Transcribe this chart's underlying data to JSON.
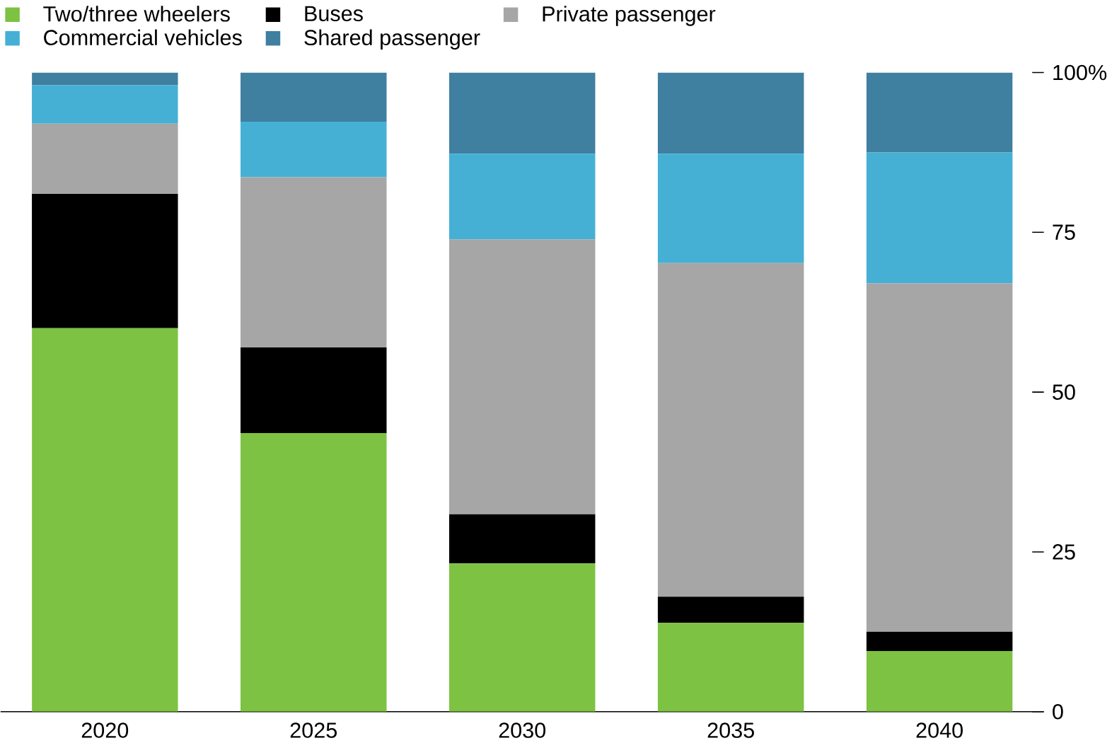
{
  "chart_data": {
    "type": "bar",
    "stacked": true,
    "categories": [
      "2020",
      "2025",
      "2030",
      "2035",
      "2040"
    ],
    "series": [
      {
        "name": "Two/three wheelers",
        "color": "#7dc242",
        "values": [
          60,
          43.6,
          23.2,
          13.9,
          9.5
        ]
      },
      {
        "name": "Buses",
        "color": "#000000",
        "values": [
          21,
          13.4,
          7.7,
          4.1,
          3
        ]
      },
      {
        "name": "Private passenger",
        "color": "#a6a6a6",
        "values": [
          11,
          26.6,
          43,
          52.2,
          54.5
        ]
      },
      {
        "name": "Commercial vehicles",
        "color": "#45b0d4",
        "values": [
          6,
          8.7,
          13.4,
          17.1,
          20.5
        ]
      },
      {
        "name": "Shared passenger",
        "color": "#3f7fa0",
        "values": [
          2,
          7.7,
          12.7,
          12.7,
          12.5
        ]
      }
    ],
    "ylim": [
      0,
      100
    ],
    "yticks": [
      0,
      25,
      50,
      75,
      {
        "value": 100,
        "label": "100%"
      }
    ],
    "legend": "top left",
    "grid": false
  }
}
